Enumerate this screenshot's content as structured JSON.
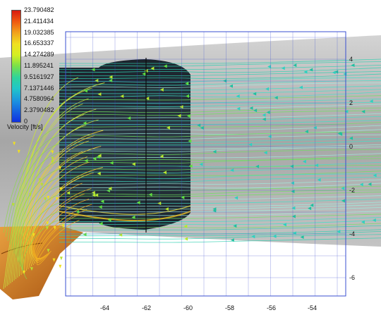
{
  "legend": {
    "title": "Velocity [ft/s]",
    "labels": [
      "23.790482",
      "21.411434",
      "19.032385",
      "16.653337",
      "14.274289",
      "11.895241",
      "9.5161927",
      "7.1371446",
      "4.7580964",
      "2.3790482",
      "0"
    ]
  },
  "axes": {
    "x_ticks": [
      "-64",
      "-62",
      "-60",
      "-58",
      "-56",
      "-54"
    ],
    "y_ticks": [
      "4",
      "2",
      "0",
      "-2",
      "-4",
      "-6"
    ]
  },
  "colors": {
    "pipe": "#9a9a9a",
    "chamber": "#1f2a33",
    "grid": "#3a4fd0",
    "inlet_pipe": "#c4701e"
  }
}
